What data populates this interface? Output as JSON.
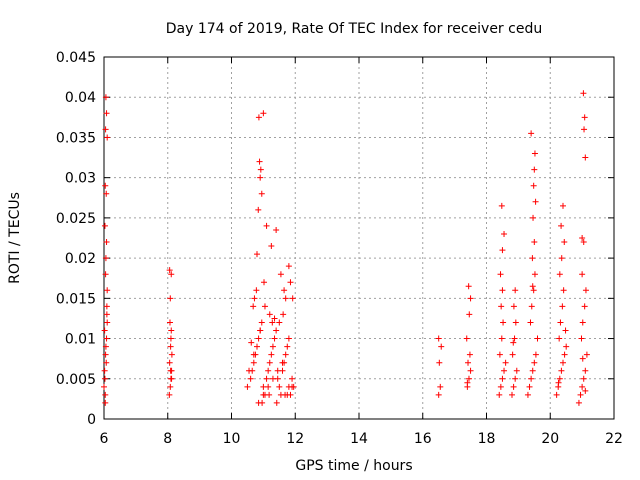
{
  "chart_data": {
    "type": "scatter",
    "title": "Day 174 of 2019, Rate Of TEC Index for receiver cedu",
    "xlabel": "GPS time / hours",
    "ylabel": "ROTI / TECUs",
    "xlim": [
      6,
      22
    ],
    "ylim": [
      0,
      0.045
    ],
    "x_ticks": [
      "6",
      "8",
      "10",
      "12",
      "14",
      "16",
      "18",
      "20",
      "22"
    ],
    "y_ticks": [
      "0",
      "0.005",
      "0.01",
      "0.015",
      "0.02",
      "0.025",
      "0.03",
      "0.035",
      "0.04",
      "0.045"
    ],
    "grid": true,
    "marker": "+",
    "color": "#ff0000",
    "series": [
      {
        "name": "ROTI",
        "x": [
          6.0,
          6.02,
          6.05,
          6.08,
          6.1,
          6.03,
          6.06,
          6.09,
          6.04,
          6.07,
          6.1,
          6.02,
          6.05,
          6.08,
          6.03,
          6.06,
          6.09,
          6.04,
          6.07,
          6.05,
          6.08,
          6.06,
          6.1,
          6.04,
          8.05,
          8.08,
          8.1,
          8.12,
          8.06,
          8.09,
          8.11,
          8.07,
          8.1,
          8.13,
          8.08,
          8.11,
          8.06,
          8.09,
          8.12,
          10.5,
          10.6,
          10.65,
          10.7,
          10.75,
          10.8,
          10.85,
          10.9,
          10.95,
          11.0,
          11.05,
          11.1,
          11.15,
          11.2,
          11.25,
          11.3,
          11.35,
          11.4,
          11.45,
          11.5,
          11.55,
          11.6,
          11.65,
          11.7,
          11.75,
          11.8,
          11.85,
          11.9,
          11.95,
          10.55,
          10.7,
          10.85,
          11.0,
          11.15,
          11.3,
          11.45,
          11.6,
          11.75,
          11.9,
          10.62,
          10.9,
          11.2,
          11.5,
          11.8,
          10.72,
          11.05,
          11.35,
          11.65,
          10.88,
          10.92,
          10.9,
          10.95,
          11.0,
          10.86,
          10.84,
          11.1,
          11.25,
          11.7,
          11.8,
          11.85,
          10.8,
          11.4,
          11.55,
          10.68,
          10.78,
          11.02,
          11.28,
          11.62,
          11.92,
          10.96,
          11.18,
          11.42,
          11.68,
          16.5,
          16.55,
          16.52,
          16.58,
          16.5,
          17.4,
          17.45,
          17.5,
          17.42,
          17.48,
          17.38,
          17.46,
          17.5,
          17.44,
          17.4,
          18.4,
          18.45,
          18.5,
          18.55,
          18.42,
          18.48,
          18.52,
          18.46,
          18.5,
          18.44,
          18.5,
          18.55,
          18.48,
          18.6,
          18.8,
          18.85,
          18.9,
          18.95,
          18.82,
          18.88,
          18.92,
          18.86,
          18.9,
          18.84,
          19.3,
          19.35,
          19.4,
          19.45,
          19.5,
          19.55,
          19.6,
          19.38,
          19.42,
          19.48,
          19.52,
          19.44,
          19.5,
          19.46,
          19.54,
          19.48,
          19.5,
          19.52,
          19.4,
          19.45,
          20.2,
          20.25,
          20.3,
          20.35,
          20.4,
          20.45,
          20.5,
          20.28,
          20.32,
          20.38,
          20.42,
          20.3,
          20.36,
          20.44,
          20.34,
          20.4,
          20.26,
          20.48,
          20.9,
          20.95,
          21.0,
          21.05,
          21.1,
          21.15,
          20.98,
          21.02,
          21.08,
          21.12,
          21.0,
          21.05,
          21.1,
          21.06,
          21.08,
          21.04,
          21.1,
          21.02,
          21.0
        ],
        "y": [
          0.004,
          0.006,
          0.008,
          0.01,
          0.012,
          0.005,
          0.009,
          0.014,
          0.003,
          0.007,
          0.016,
          0.011,
          0.018,
          0.022,
          0.024,
          0.02,
          0.013,
          0.029,
          0.028,
          0.036,
          0.038,
          0.04,
          0.035,
          0.002,
          0.003,
          0.004,
          0.005,
          0.006,
          0.007,
          0.009,
          0.011,
          0.012,
          0.01,
          0.008,
          0.015,
          0.018,
          0.0185,
          0.006,
          0.005,
          0.004,
          0.005,
          0.006,
          0.007,
          0.008,
          0.009,
          0.01,
          0.011,
          0.012,
          0.004,
          0.003,
          0.005,
          0.006,
          0.007,
          0.008,
          0.009,
          0.01,
          0.011,
          0.005,
          0.004,
          0.003,
          0.006,
          0.007,
          0.008,
          0.009,
          0.004,
          0.003,
          0.005,
          0.004,
          0.006,
          0.008,
          0.002,
          0.003,
          0.004,
          0.005,
          0.006,
          0.007,
          0.003,
          0.004,
          0.0095,
          0.011,
          0.013,
          0.012,
          0.01,
          0.015,
          0.014,
          0.0125,
          0.016,
          0.032,
          0.031,
          0.03,
          0.028,
          0.038,
          0.0375,
          0.026,
          0.024,
          0.0215,
          0.015,
          0.019,
          0.017,
          0.0205,
          0.0235,
          0.018,
          0.014,
          0.016,
          0.017,
          0.012,
          0.013,
          0.015,
          0.002,
          0.003,
          0.002,
          0.003,
          0.003,
          0.004,
          0.007,
          0.009,
          0.01,
          0.004,
          0.005,
          0.006,
          0.007,
          0.008,
          0.01,
          0.013,
          0.015,
          0.0165,
          0.0045,
          0.003,
          0.004,
          0.005,
          0.006,
          0.008,
          0.01,
          0.012,
          0.014,
          0.016,
          0.018,
          0.021,
          0.023,
          0.0265,
          0.007,
          0.003,
          0.004,
          0.005,
          0.006,
          0.008,
          0.01,
          0.012,
          0.014,
          0.016,
          0.0095,
          0.003,
          0.004,
          0.005,
          0.006,
          0.007,
          0.008,
          0.01,
          0.012,
          0.014,
          0.016,
          0.018,
          0.02,
          0.022,
          0.025,
          0.027,
          0.029,
          0.031,
          0.033,
          0.0355,
          0.0165,
          0.003,
          0.004,
          0.005,
          0.006,
          0.007,
          0.008,
          0.009,
          0.01,
          0.012,
          0.014,
          0.016,
          0.018,
          0.02,
          0.022,
          0.024,
          0.0265,
          0.0045,
          0.011,
          0.002,
          0.003,
          0.004,
          0.005,
          0.006,
          0.008,
          0.01,
          0.012,
          0.014,
          0.016,
          0.018,
          0.022,
          0.0325,
          0.036,
          0.0375,
          0.0405,
          0.0035,
          0.0075,
          0.0225
        ]
      }
    ]
  }
}
